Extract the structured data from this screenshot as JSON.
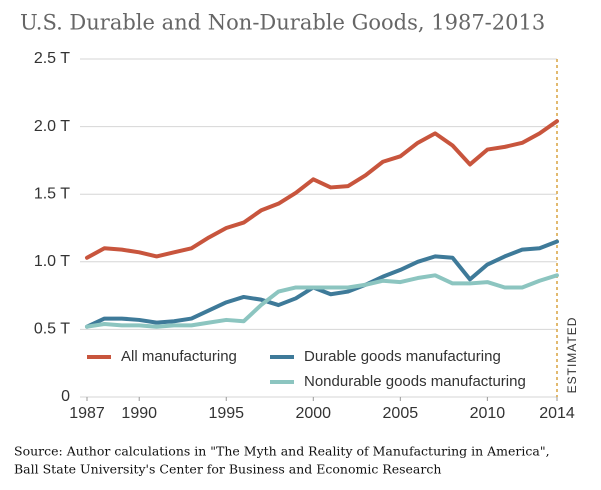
{
  "chart_data": {
    "type": "line",
    "title": "U.S. Durable and Non-Durable Goods, 1987-2013",
    "x": [
      1987,
      1988,
      1989,
      1990,
      1991,
      1992,
      1993,
      1994,
      1995,
      1996,
      1997,
      1998,
      1999,
      2000,
      2001,
      2002,
      2003,
      2004,
      2005,
      2006,
      2007,
      2008,
      2009,
      2010,
      2011,
      2012,
      2013,
      2014
    ],
    "series": [
      {
        "name": "All manufacturing",
        "color": "#c8553d",
        "values": [
          1.03,
          1.1,
          1.09,
          1.07,
          1.04,
          1.07,
          1.1,
          1.18,
          1.25,
          1.29,
          1.38,
          1.43,
          1.51,
          1.61,
          1.55,
          1.56,
          1.64,
          1.74,
          1.78,
          1.88,
          1.95,
          1.86,
          1.72,
          1.83,
          1.85,
          1.88,
          1.95,
          2.04
        ]
      },
      {
        "name": "Durable goods manufacturing",
        "color": "#3e7a99",
        "values": [
          0.52,
          0.58,
          0.58,
          0.57,
          0.55,
          0.56,
          0.58,
          0.64,
          0.7,
          0.74,
          0.72,
          0.68,
          0.73,
          0.81,
          0.76,
          0.78,
          0.83,
          0.89,
          0.94,
          1.0,
          1.04,
          1.03,
          0.87,
          0.98,
          1.04,
          1.09,
          1.1,
          1.15
        ]
      },
      {
        "name": "Nondurable goods manufacturing",
        "color": "#8cc5c0",
        "values": [
          0.52,
          0.54,
          0.53,
          0.53,
          0.52,
          0.53,
          0.53,
          0.55,
          0.57,
          0.56,
          0.68,
          0.78,
          0.81,
          0.81,
          0.81,
          0.81,
          0.83,
          0.86,
          0.85,
          0.88,
          0.9,
          0.84,
          0.84,
          0.85,
          0.81,
          0.81,
          0.86,
          0.9
        ]
      }
    ],
    "xlim": [
      1987,
      2014
    ],
    "xticks": [
      1987,
      1990,
      1995,
      2000,
      2005,
      2010,
      2014
    ],
    "ylim": [
      0,
      2.5
    ],
    "yticks": [
      0,
      {
        "value": 0.5,
        "label": "0.5 T"
      },
      {
        "value": 1.0,
        "label": "1.0 T"
      },
      {
        "value": 1.5,
        "label": "1.5 T"
      },
      {
        "value": 2.0,
        "label": "2.0 T"
      },
      {
        "value": 2.5,
        "label": "2.5 T"
      }
    ],
    "grid": true,
    "annotation": {
      "text": "ESTIMATED",
      "x": 2014,
      "color": "#d9a441"
    },
    "source": [
      "Source: Author calculations in \"The Myth and Reality of Manufacturing in America\",",
      "Ball State University's Center for Business and Economic Research"
    ]
  }
}
